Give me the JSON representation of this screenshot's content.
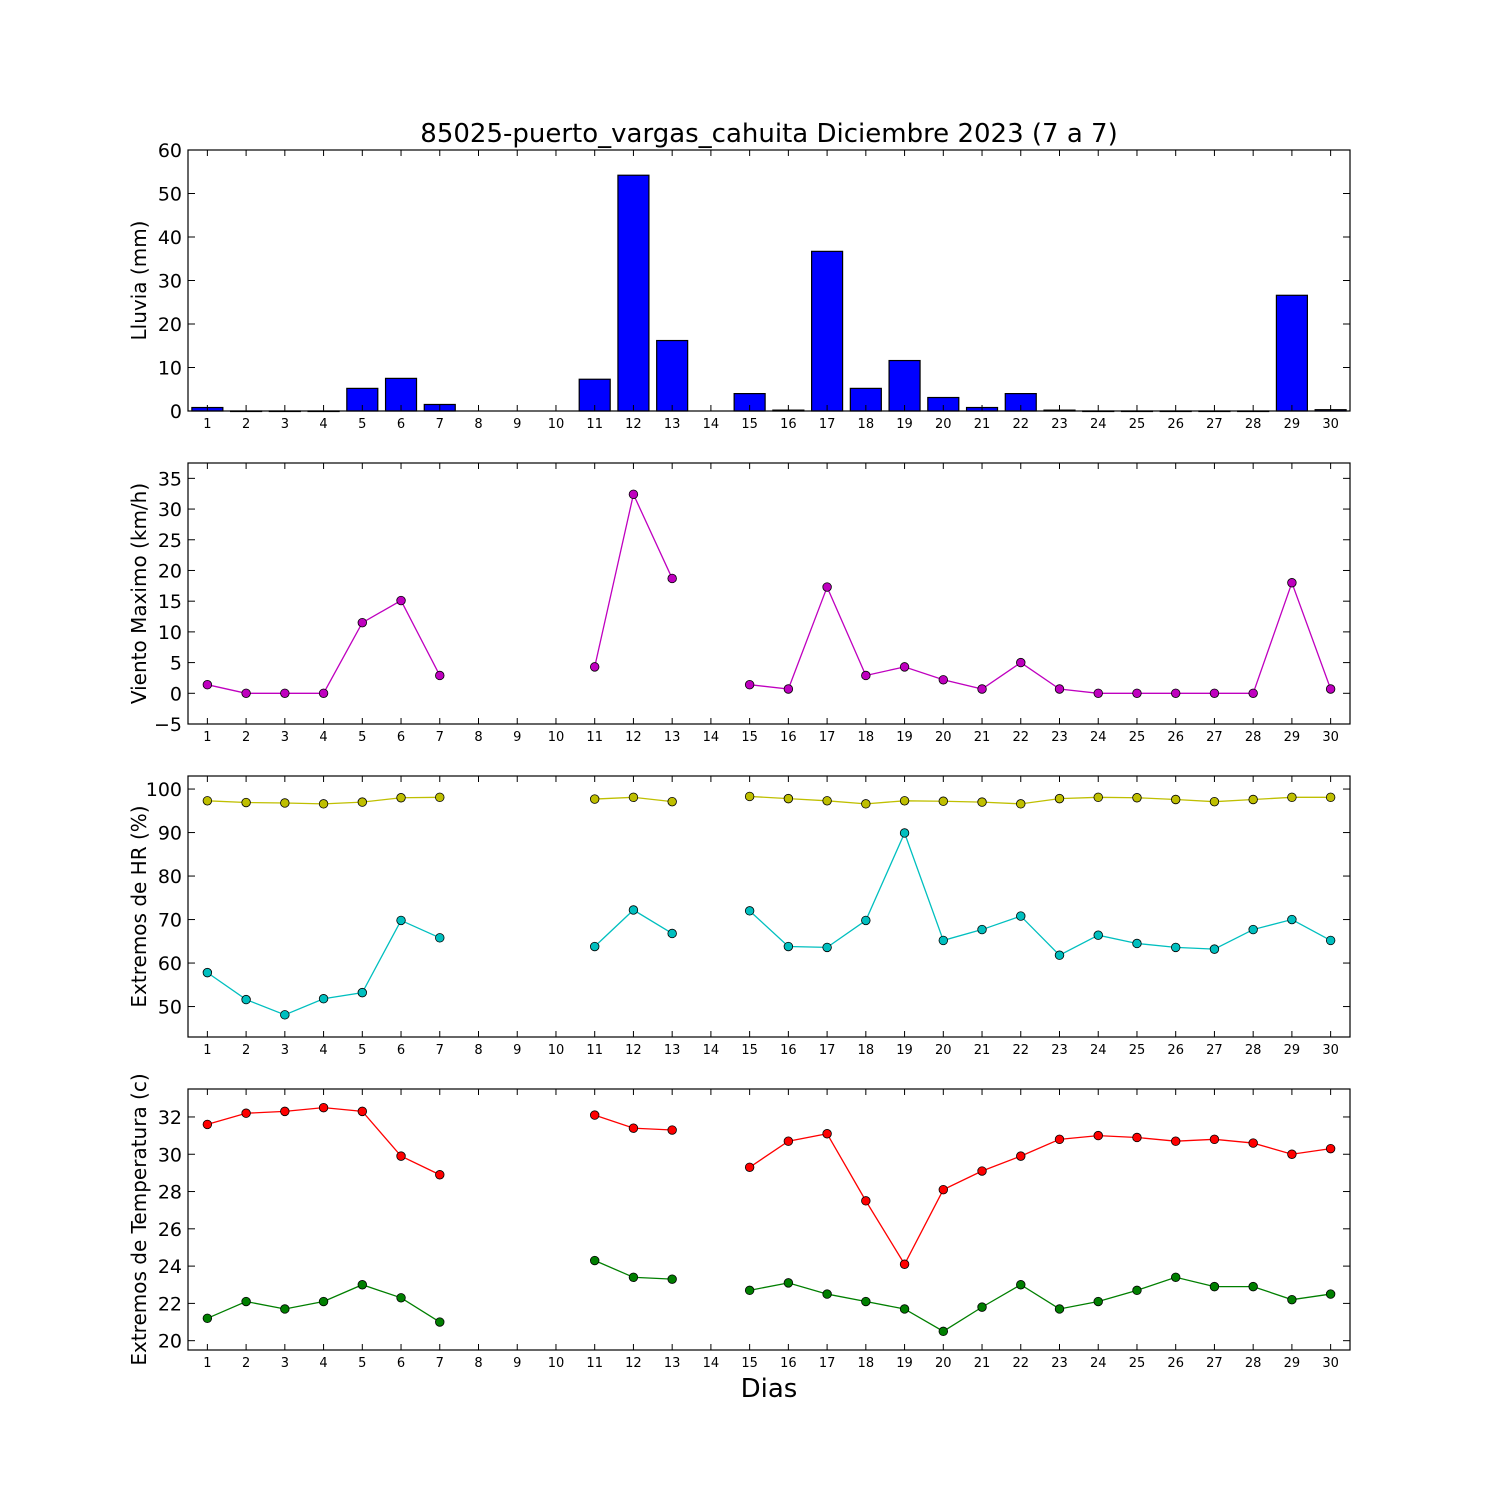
{
  "chart_data": {
    "title": "85025-puerto_vargas_cahuita Diciembre 2023  (7 a 7)",
    "xlabel": "Dias",
    "days": [
      1,
      2,
      3,
      4,
      5,
      6,
      7,
      8,
      9,
      10,
      11,
      12,
      13,
      14,
      15,
      16,
      17,
      18,
      19,
      20,
      21,
      22,
      23,
      24,
      25,
      26,
      27,
      28,
      29,
      30
    ],
    "panels": [
      {
        "type": "bar",
        "ylabel": "Lluvia (mm)",
        "ylim": [
          0,
          60
        ],
        "yticks": [
          0,
          10,
          20,
          30,
          40,
          50,
          60
        ],
        "series": [
          {
            "color": "#0000ff",
            "values": [
              0.8,
              0,
              0,
              0,
              5.2,
              7.5,
              1.5,
              null,
              null,
              null,
              7.3,
              54.2,
              16.2,
              null,
              4.0,
              0.2,
              36.7,
              5.2,
              11.6,
              3.1,
              0.8,
              4.0,
              0.2,
              0,
              0,
              0,
              0,
              0,
              26.6,
              0.3
            ]
          }
        ]
      },
      {
        "type": "line",
        "ylabel": "Viento Maximo (km/h)",
        "ylim": [
          -5,
          37.5
        ],
        "yticks": [
          -5,
          0,
          5,
          10,
          15,
          20,
          25,
          30,
          35
        ],
        "series": [
          {
            "color": "#bf00bf",
            "values": [
              1.4,
              0,
              0,
              0,
              11.5,
              15.1,
              2.9,
              null,
              null,
              null,
              4.3,
              32.4,
              18.7,
              null,
              1.4,
              0.7,
              17.3,
              2.9,
              4.3,
              2.2,
              0.7,
              5.0,
              0.7,
              0,
              0,
              0,
              0,
              0,
              18.0,
              0.7
            ]
          }
        ]
      },
      {
        "type": "line",
        "ylabel": "Extremos de HR (%)",
        "ylim": [
          43,
          103
        ],
        "yticks": [
          50,
          60,
          70,
          80,
          90,
          100
        ],
        "series": [
          {
            "color": "#bfbf00",
            "values": [
              97.3,
              96.9,
              96.8,
              96.6,
              97.0,
              98.0,
              98.1,
              null,
              null,
              null,
              97.7,
              98.1,
              97.1,
              null,
              98.3,
              97.8,
              97.3,
              96.6,
              97.3,
              97.2,
              97.0,
              96.6,
              97.8,
              98.1,
              98.0,
              97.6,
              97.1,
              97.6,
              98.1,
              98.1
            ]
          },
          {
            "color": "#00bfbf",
            "values": [
              57.8,
              51.6,
              48.1,
              51.8,
              53.2,
              69.8,
              65.8,
              null,
              null,
              null,
              63.8,
              72.2,
              66.8,
              null,
              72.0,
              63.8,
              63.6,
              69.8,
              89.9,
              65.2,
              67.7,
              70.8,
              61.8,
              66.4,
              64.5,
              63.6,
              63.2,
              67.7,
              70.0,
              65.2
            ]
          }
        ]
      },
      {
        "type": "line",
        "ylabel": "Extremos de Temperatura (c)",
        "ylim": [
          19.5,
          33.5
        ],
        "yticks": [
          20,
          22,
          24,
          26,
          28,
          30,
          32
        ],
        "series": [
          {
            "color": "#ff0000",
            "values": [
              31.6,
              32.2,
              32.3,
              32.5,
              32.3,
              29.9,
              28.9,
              null,
              null,
              null,
              32.1,
              31.4,
              31.3,
              null,
              29.3,
              30.7,
              31.1,
              27.5,
              24.1,
              28.1,
              29.1,
              29.9,
              30.8,
              31.0,
              30.9,
              30.7,
              30.8,
              30.6,
              30.0,
              30.3
            ]
          },
          {
            "color": "#007f00",
            "values": [
              21.2,
              22.1,
              21.7,
              22.1,
              23.0,
              22.3,
              21.0,
              null,
              null,
              null,
              24.3,
              23.4,
              23.3,
              null,
              22.7,
              23.1,
              22.5,
              22.1,
              21.7,
              20.5,
              21.8,
              23.0,
              21.7,
              22.1,
              22.7,
              23.4,
              22.9,
              22.9,
              22.2,
              22.5
            ]
          }
        ]
      }
    ]
  }
}
